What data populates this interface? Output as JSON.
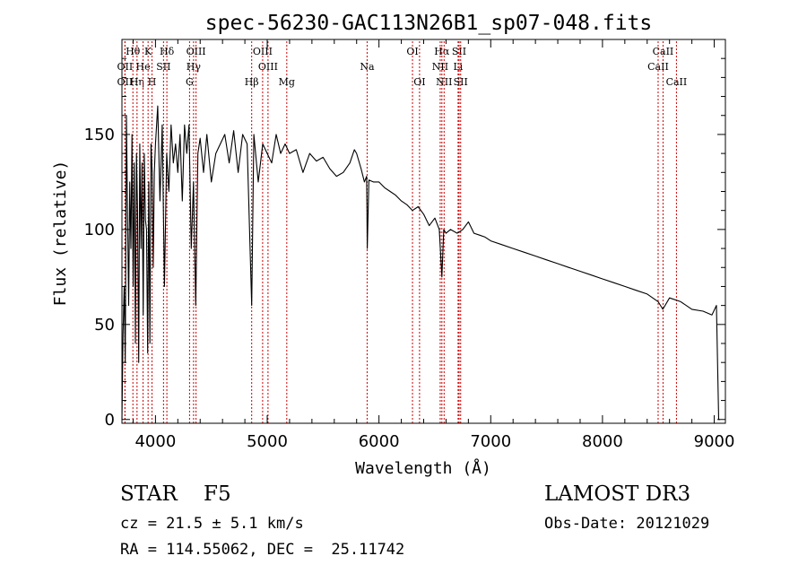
{
  "chart_data": {
    "type": "line",
    "title": "spec-56230-GAC113N26B1_sp07-048.fits",
    "xlabel": "Wavelength (Å)",
    "ylabel": "Flux (relative)",
    "xlim": [
      3700,
      9100
    ],
    "ylim": [
      -2,
      200
    ],
    "xticks": [
      4000,
      5000,
      6000,
      7000,
      8000,
      9000
    ],
    "xtick_labels": [
      "4000",
      "5000",
      "6000",
      "7000",
      "8000",
      "9000"
    ],
    "yticks": [
      0,
      50,
      100,
      150
    ],
    "ytick_labels": [
      "0",
      "50",
      "100",
      "150"
    ],
    "grid": false,
    "line_color": "#000000",
    "marker_color": "#cc0000",
    "series": [
      {
        "name": "Flux",
        "x": [
          3700,
          3710,
          3720,
          3730,
          3740,
          3750,
          3760,
          3770,
          3780,
          3790,
          3800,
          3810,
          3820,
          3830,
          3840,
          3850,
          3860,
          3870,
          3880,
          3890,
          3900,
          3910,
          3920,
          3930,
          3940,
          3950,
          3960,
          3970,
          3980,
          3990,
          4000,
          4020,
          4040,
          4060,
          4080,
          4100,
          4120,
          4140,
          4160,
          4180,
          4200,
          4220,
          4240,
          4260,
          4280,
          4300,
          4320,
          4340,
          4360,
          4380,
          4400,
          4430,
          4460,
          4500,
          4540,
          4580,
          4620,
          4660,
          4700,
          4740,
          4780,
          4820,
          4861,
          4880,
          4920,
          4960,
          5000,
          5040,
          5080,
          5120,
          5160,
          5200,
          5260,
          5320,
          5380,
          5440,
          5500,
          5560,
          5620,
          5680,
          5740,
          5780,
          5800,
          5840,
          5870,
          5890,
          5895,
          5910,
          5950,
          6000,
          6050,
          6100,
          6150,
          6200,
          6250,
          6300,
          6350,
          6400,
          6450,
          6500,
          6540,
          6563,
          6580,
          6600,
          6640,
          6700,
          6750,
          6800,
          6850,
          6900,
          6950,
          7000,
          7100,
          7200,
          7300,
          7400,
          7500,
          7600,
          7700,
          7800,
          7900,
          8000,
          8100,
          8200,
          8300,
          8400,
          8498,
          8540,
          8600,
          8700,
          8800,
          8900,
          8980,
          9020,
          9040,
          9050
        ],
        "y": [
          0,
          45,
          70,
          30,
          160,
          110,
          60,
          125,
          90,
          150,
          70,
          135,
          40,
          140,
          110,
          30,
          145,
          90,
          135,
          55,
          140,
          105,
          100,
          35,
          125,
          40,
          145,
          130,
          80,
          130,
          145,
          165,
          115,
          155,
          70,
          140,
          120,
          155,
          135,
          145,
          130,
          150,
          115,
          155,
          140,
          155,
          90,
          125,
          60,
          140,
          148,
          130,
          150,
          125,
          140,
          145,
          150,
          135,
          152,
          130,
          150,
          145,
          60,
          150,
          125,
          145,
          140,
          135,
          150,
          140,
          145,
          140,
          142,
          130,
          140,
          136,
          138,
          132,
          128,
          130,
          135,
          142,
          140,
          132,
          125,
          128,
          90,
          126,
          125,
          125,
          122,
          120,
          118,
          115,
          113,
          110,
          112,
          108,
          102,
          106,
          100,
          75,
          100,
          98,
          100,
          98,
          100,
          104,
          98,
          97,
          96,
          94,
          92,
          90,
          88,
          86,
          84,
          82,
          80,
          78,
          76,
          74,
          72,
          70,
          68,
          66,
          62,
          58,
          64,
          62,
          58,
          57,
          55,
          60,
          0,
          0
        ]
      }
    ],
    "line_markers": [
      {
        "label": "Hθ",
        "x": 3798,
        "row": 1
      },
      {
        "label": "OII",
        "x": 3727,
        "row": 2
      },
      {
        "label": "OII",
        "x": 3727,
        "row": 3
      },
      {
        "label": "Hη",
        "x": 3835,
        "row": 3
      },
      {
        "label": "K",
        "x": 3934,
        "row": 1
      },
      {
        "label": "He",
        "x": 3889,
        "row": 2
      },
      {
        "label": "H",
        "x": 3969,
        "row": 3
      },
      {
        "label": "Hδ",
        "x": 4102,
        "row": 1
      },
      {
        "label": "SII",
        "x": 4072,
        "row": 2
      },
      {
        "label": "OIII",
        "x": 4363,
        "row": 1
      },
      {
        "label": "Hγ",
        "x": 4341,
        "row": 2
      },
      {
        "label": "G",
        "x": 4305,
        "row": 3
      },
      {
        "label": "Hβ",
        "x": 4861,
        "row": 3
      },
      {
        "label": "OIII",
        "x": 4959,
        "row": 1
      },
      {
        "label": "OIII",
        "x": 5007,
        "row": 2
      },
      {
        "label": "Mg",
        "x": 5175,
        "row": 3
      },
      {
        "label": "Na",
        "x": 5894,
        "row": 2
      },
      {
        "label": "OI",
        "x": 6300,
        "row": 1
      },
      {
        "label": "OI",
        "x": 6363,
        "row": 3
      },
      {
        "label": "Hα",
        "x": 6563,
        "row": 1
      },
      {
        "label": "NII",
        "x": 6548,
        "row": 2
      },
      {
        "label": "NII",
        "x": 6583,
        "row": 3
      },
      {
        "label": "SII",
        "x": 6717,
        "row": 1
      },
      {
        "label": "Li",
        "x": 6708,
        "row": 2
      },
      {
        "label": "SII",
        "x": 6731,
        "row": 3
      },
      {
        "label": "CaII",
        "x": 8542,
        "row": 1
      },
      {
        "label": "CaII",
        "x": 8498,
        "row": 2
      },
      {
        "label": "CaII",
        "x": 8662,
        "row": 3
      }
    ]
  },
  "footer": {
    "object_class": "STAR    F5",
    "cz": "cz = 21.5 ± 5.1 km/s",
    "radec": "RA = 114.55062, DEC =  25.11742",
    "survey": "LAMOST DR3",
    "obs_date": "Obs-Date: 20121029"
  }
}
